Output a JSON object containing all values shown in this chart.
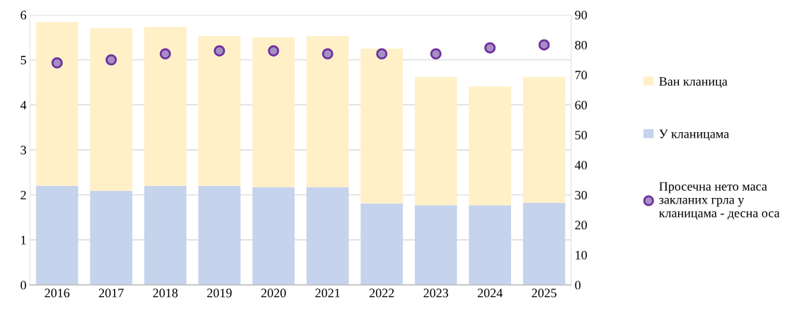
{
  "chart_data": {
    "type": "bar",
    "stacked": true,
    "categories": [
      "2016",
      "2017",
      "2018",
      "2019",
      "2020",
      "2021",
      "2022",
      "2023",
      "2024",
      "2025"
    ],
    "series": [
      {
        "name": "У кланицама",
        "color": "#c5d3ec",
        "values": [
          2.2,
          2.09,
          2.2,
          2.2,
          2.17,
          2.17,
          1.81,
          1.77,
          1.77,
          1.82
        ]
      },
      {
        "name": "Ван кланица",
        "color": "#fff0c8",
        "values": [
          3.64,
          3.61,
          3.53,
          3.33,
          3.33,
          3.36,
          3.44,
          2.85,
          2.64,
          2.8
        ]
      },
      {
        "name": "Просечна нето маса\nзакланих грла у\nкланицама - десна оса",
        "type": "scatter",
        "axis": "y2",
        "color": "#a58fc4",
        "values": [
          74,
          75,
          77,
          78,
          78,
          77,
          77,
          77,
          79,
          80
        ]
      }
    ],
    "ylim": [
      0,
      6
    ],
    "yticks": [
      0,
      1,
      2,
      3,
      4,
      5,
      6
    ],
    "y2lim": [
      0,
      90
    ],
    "y2ticks": [
      0,
      10,
      20,
      30,
      40,
      50,
      60,
      70,
      80,
      90
    ],
    "grid": "y",
    "legend": "right",
    "marker": "circle"
  }
}
